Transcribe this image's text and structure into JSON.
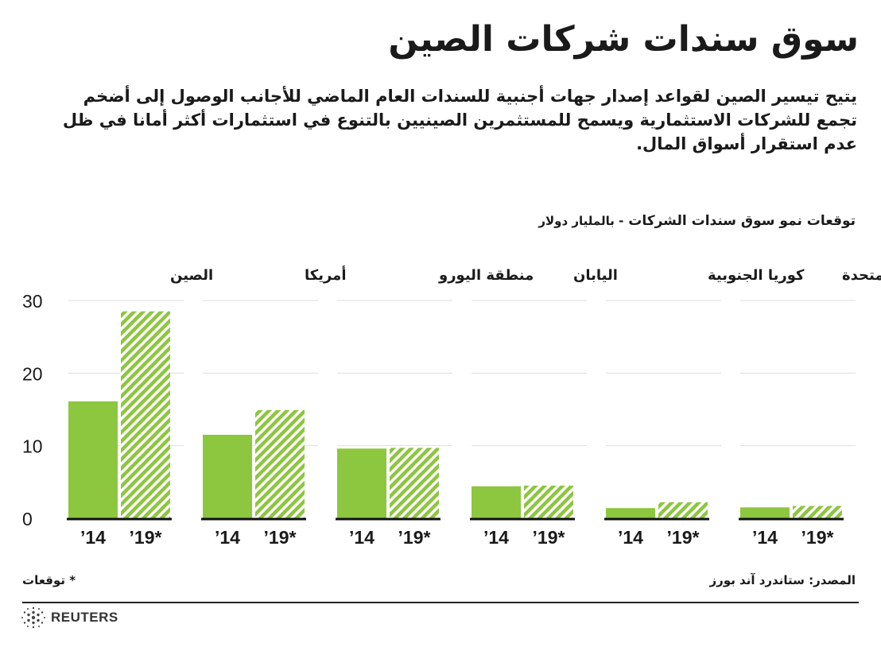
{
  "header": {
    "title": "سوق سندات شركات الصين",
    "subtitle": "يتيح تيسير الصين لقواعد إصدار جهات أجنبية للسندات العام الماضي للأجانب الوصول إلى أضخم تجمع للشركات الاستثمارية ويسمح للمستثمرين الصينيين بالتنوع في استثمارات أكثر أمانا في ظل عدم استقرار أسواق المال."
  },
  "chart_data": {
    "type": "bar",
    "title": "توقعات نمو سوق سندات الشركات",
    "unit_label": "- بالمليار دولار",
    "categories": [
      "الصين",
      "أمريكا",
      "منطقة اليورو",
      "اليابان",
      "كوريا الجنوبية",
      "المملكة المتحدة"
    ],
    "x_tick_labels": [
      "’14",
      "’19*"
    ],
    "series": [
      {
        "name": "’14",
        "values": [
          16.1,
          11.5,
          9.6,
          4.4,
          1.4,
          1.5
        ]
      },
      {
        "name": "’19*",
        "values": [
          28.5,
          14.9,
          9.7,
          4.5,
          2.2,
          1.7
        ]
      }
    ],
    "y_ticks": [
      0,
      10,
      20,
      30
    ],
    "ylim": [
      0,
      30
    ],
    "grid": true,
    "colors": {
      "solid": "#8dc63f",
      "hatch": "#8dc63f",
      "text": "#1a1a1a"
    }
  },
  "footer": {
    "source": "المصدر: ستاندرد آند بورز",
    "note": "* توقعات",
    "brand": "REUTERS"
  }
}
